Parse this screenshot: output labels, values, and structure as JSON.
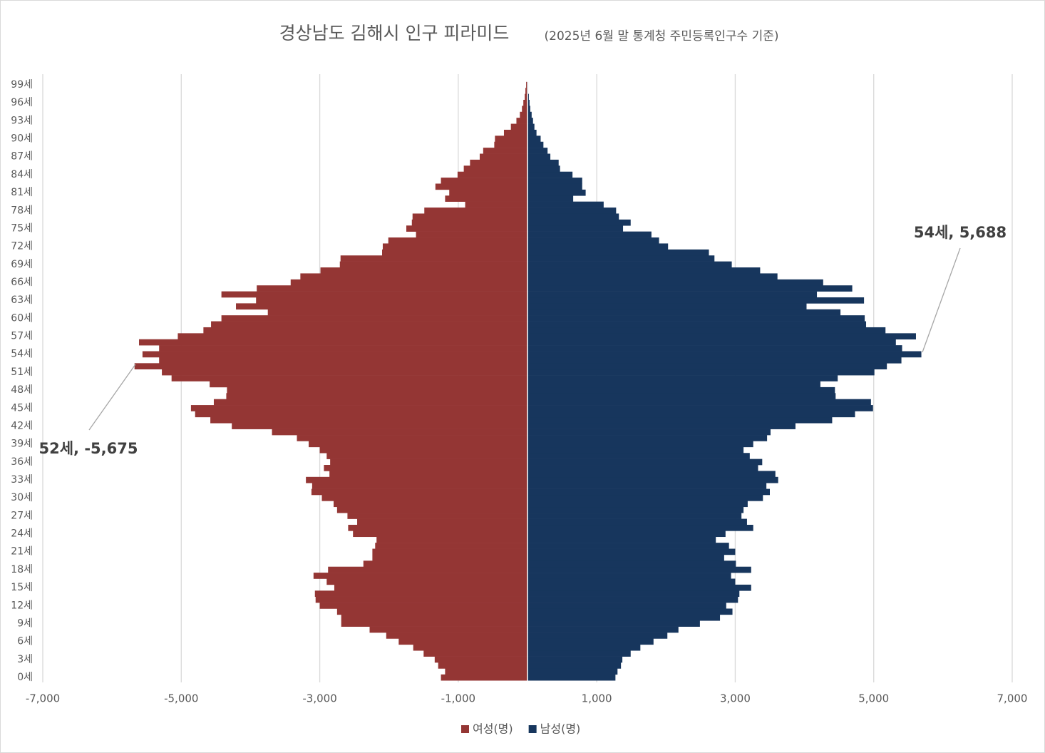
{
  "chart_data": {
    "type": "bar",
    "orientation": "horizontal",
    "title": "경상남도 김해시 인구 피라미드",
    "subtitle": "(2025년 6월 말 통계청 주민등록인구수 기준)",
    "categories": [
      "0세",
      null,
      null,
      "3세",
      null,
      null,
      "6세",
      null,
      null,
      "9세",
      null,
      null,
      "12세",
      null,
      null,
      "15세",
      null,
      null,
      "18세",
      null,
      null,
      "21세",
      null,
      null,
      "24세",
      null,
      null,
      "27세",
      null,
      null,
      "30세",
      null,
      null,
      "33세",
      null,
      null,
      "36세",
      null,
      null,
      "39세",
      null,
      null,
      "42세",
      null,
      null,
      "45세",
      null,
      null,
      "48세",
      null,
      null,
      "51세",
      null,
      null,
      "54세",
      null,
      null,
      "57세",
      null,
      null,
      "60세",
      null,
      null,
      "63세",
      null,
      null,
      "66세",
      null,
      null,
      "69세",
      null,
      null,
      "72세",
      null,
      null,
      "75세",
      null,
      null,
      "78세",
      null,
      null,
      "81세",
      null,
      null,
      "84세",
      null,
      null,
      "87세",
      null,
      null,
      "90세",
      null,
      null,
      "93세",
      null,
      null,
      "96세",
      null,
      null,
      "99세"
    ],
    "series": [
      {
        "name": "여성(명)",
        "color": "#943634",
        "values": [
          -1250,
          -1190,
          -1290,
          -1340,
          -1500,
          -1650,
          -1860,
          -2040,
          -2280,
          -2690,
          -2690,
          -2750,
          -3000,
          -3060,
          -3070,
          -2790,
          -2900,
          -3090,
          -2880,
          -2370,
          -2240,
          -2240,
          -2200,
          -2180,
          -2520,
          -2590,
          -2460,
          -2600,
          -2750,
          -2800,
          -2970,
          -3120,
          -3110,
          -3200,
          -2860,
          -2940,
          -2850,
          -2900,
          -3000,
          -3160,
          -3330,
          -3690,
          -4270,
          -4580,
          -4800,
          -4860,
          -4530,
          -4350,
          -4340,
          -4590,
          -5140,
          -5280,
          -5675,
          -5320,
          -5560,
          -5320,
          -5610,
          -5050,
          -4680,
          -4570,
          -4420,
          -3750,
          -4210,
          -3920,
          -4420,
          -3910,
          -3420,
          -3280,
          -2990,
          -2710,
          -2700,
          -2100,
          -2090,
          -2010,
          -1610,
          -1750,
          -1670,
          -1660,
          -1490,
          -900,
          -1190,
          -1130,
          -1330,
          -1250,
          -1010,
          -920,
          -830,
          -690,
          -640,
          -480,
          -470,
          -340,
          -240,
          -160,
          -110,
          -80,
          -60,
          -40,
          -30,
          -20
        ]
      },
      {
        "name": "남성(명)",
        "color": "#17365d",
        "values": [
          1270,
          1300,
          1350,
          1370,
          1490,
          1630,
          1820,
          2020,
          2180,
          2490,
          2780,
          2960,
          2870,
          3040,
          3060,
          3230,
          3000,
          2940,
          3230,
          3010,
          2840,
          3000,
          2910,
          2720,
          2860,
          3260,
          3170,
          3090,
          3120,
          3180,
          3400,
          3500,
          3450,
          3620,
          3580,
          3330,
          3390,
          3210,
          3120,
          3260,
          3460,
          3510,
          3870,
          4400,
          4730,
          4990,
          4960,
          4450,
          4440,
          4230,
          4480,
          5010,
          5190,
          5400,
          5688,
          5410,
          5320,
          5610,
          5170,
          4890,
          4870,
          4520,
          4030,
          4860,
          4180,
          4690,
          4270,
          3610,
          3360,
          2950,
          2700,
          2620,
          2030,
          1900,
          1790,
          1380,
          1490,
          1320,
          1280,
          1100,
          660,
          840,
          790,
          790,
          650,
          470,
          450,
          330,
          290,
          230,
          190,
          130,
          100,
          80,
          60,
          40,
          30,
          20,
          10,
          10
        ]
      }
    ],
    "xlim": [
      -7000,
      7000
    ],
    "xticks": [
      {
        "value": -7000,
        "label": "-7,000"
      },
      {
        "value": -5000,
        "label": "-5,000"
      },
      {
        "value": -3000,
        "label": "-3,000"
      },
      {
        "value": -1000,
        "label": "-1,000"
      },
      {
        "value": 1000,
        "label": "1,000"
      },
      {
        "value": 3000,
        "label": "3,000"
      },
      {
        "value": 5000,
        "label": "5,000"
      },
      {
        "value": 7000,
        "label": "7,000"
      }
    ],
    "grid": true,
    "legend": "bottom",
    "annotations": [
      "54세, 5,688",
      "52세, -5,675"
    ]
  }
}
